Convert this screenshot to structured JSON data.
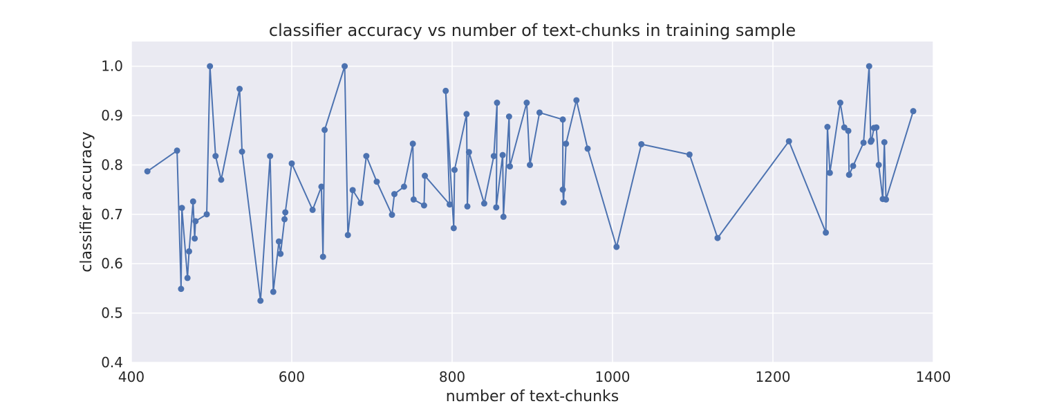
{
  "chart_data": {
    "type": "line",
    "title": "classifier accuracy vs number of text-chunks in training sample",
    "xlabel": "number of text-chunks",
    "ylabel": "classifier accuracy",
    "xlim": [
      400,
      1400
    ],
    "ylim": [
      0.4,
      1.05
    ],
    "xticks": [
      400,
      600,
      800,
      1000,
      1200,
      1400
    ],
    "yticks": [
      0.4,
      0.5,
      0.6,
      0.7,
      0.8,
      0.9,
      1.0
    ],
    "xtick_labels": [
      "400",
      "600",
      "800",
      "1000",
      "1200",
      "1400"
    ],
    "ytick_labels": [
      "0.4",
      "0.5",
      "0.6",
      "0.7",
      "0.8",
      "0.9",
      "1.0"
    ],
    "grid": true,
    "colors": {
      "series": "#4c72b0",
      "plot_bg": "#eaeaf2",
      "grid": "#ffffff",
      "text": "#262626"
    },
    "series": [
      {
        "x": [
          420,
          457,
          462,
          463,
          470,
          472,
          477,
          479,
          480,
          494,
          498,
          505,
          512,
          535,
          538,
          561,
          573,
          577,
          584,
          586,
          591,
          592,
          600,
          626,
          637,
          639,
          641,
          666,
          670,
          676,
          686,
          693,
          706,
          725,
          728,
          740,
          751,
          752,
          765,
          766,
          797,
          792,
          802,
          803,
          818,
          819,
          821,
          840,
          852,
          856,
          855,
          863,
          864,
          871,
          872,
          893,
          897,
          909,
          938,
          938,
          939,
          942,
          955,
          969,
          1005,
          1036,
          1096,
          1131,
          1220,
          1266,
          1268,
          1271,
          1284,
          1289,
          1294,
          1295,
          1300,
          1313,
          1320,
          1322,
          1323,
          1326,
          1329,
          1332,
          1337,
          1339,
          1341,
          1375
        ],
        "y": [
          0.787,
          0.829,
          0.549,
          0.713,
          0.571,
          0.625,
          0.726,
          0.651,
          0.686,
          0.7,
          1.0,
          0.818,
          0.77,
          0.954,
          0.827,
          0.525,
          0.818,
          0.543,
          0.645,
          0.62,
          0.69,
          0.704,
          0.803,
          0.709,
          0.756,
          0.614,
          0.871,
          1.0,
          0.658,
          0.749,
          0.723,
          0.818,
          0.766,
          0.699,
          0.741,
          0.756,
          0.843,
          0.73,
          0.718,
          0.778,
          0.72,
          0.95,
          0.672,
          0.79,
          0.903,
          0.716,
          0.826,
          0.722,
          0.818,
          0.926,
          0.714,
          0.82,
          0.695,
          0.898,
          0.797,
          0.926,
          0.8,
          0.906,
          0.892,
          0.75,
          0.724,
          0.843,
          0.931,
          0.833,
          0.634,
          0.842,
          0.821,
          0.652,
          0.848,
          0.663,
          0.877,
          0.784,
          0.926,
          0.876,
          0.869,
          0.78,
          0.798,
          0.845,
          1.0,
          0.847,
          0.85,
          0.875,
          0.876,
          0.8,
          0.731,
          0.846,
          0.73,
          0.909
        ]
      }
    ]
  }
}
